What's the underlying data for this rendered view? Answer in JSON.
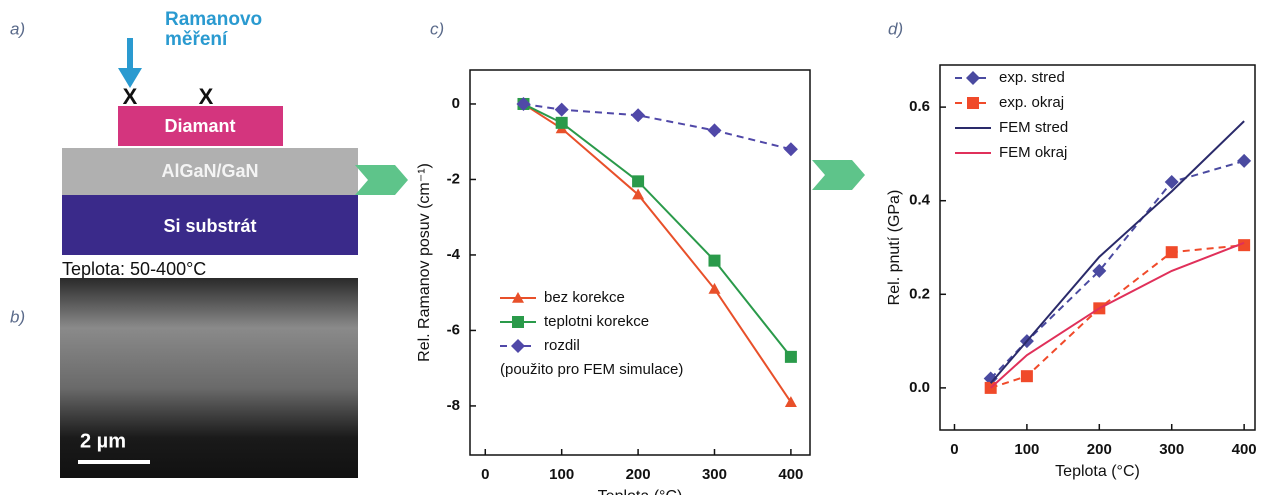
{
  "panels": [
    "a)",
    "b)",
    "c)",
    "d)"
  ],
  "diagram": {
    "raman_label": [
      "Ramanovo",
      "měření"
    ],
    "markers": [
      "X",
      "X"
    ],
    "layers": [
      "Diamant",
      "AlGaN/GaN",
      "Si substrát"
    ],
    "temperature": "Teplota: 50-400°C"
  },
  "image": {
    "scale_bar": "2 µm"
  },
  "chart_data": [
    {
      "type": "line",
      "x_label": "Teplota (°C)",
      "y_label": "Rel. Ramanov posuv (cm⁻¹)",
      "x": [
        50,
        100,
        200,
        300,
        400
      ],
      "xlim": [
        -20,
        425
      ],
      "xticks": [
        0,
        100,
        200,
        300,
        400
      ],
      "ylim": [
        -9.3,
        0.9
      ],
      "yticks": [
        0,
        -2,
        -4,
        -6,
        -8
      ],
      "legend": "lower left",
      "annotation": "(použito pro FEM simulace)",
      "series": [
        {
          "name": "bez korekce",
          "color": "#e8502a",
          "marker": "triangle",
          "dashed": false,
          "values": [
            0,
            -0.65,
            -2.4,
            -4.9,
            -7.9
          ]
        },
        {
          "name": "teplotni korekce",
          "color": "#2a9a4a",
          "marker": "square",
          "dashed": false,
          "values": [
            0,
            -0.5,
            -2.05,
            -4.15,
            -6.7
          ]
        },
        {
          "name": "rozdil",
          "color": "#5048a8",
          "marker": "diamond",
          "dashed": true,
          "values": [
            0,
            -0.15,
            -0.3,
            -0.7,
            -1.2
          ]
        }
      ]
    },
    {
      "type": "line",
      "x_label": "Teplota (°C)",
      "y_label": "Rel. pnutí (GPa)",
      "x": [
        50,
        100,
        200,
        300,
        400
      ],
      "xlim": [
        -20,
        415
      ],
      "xticks": [
        0,
        100,
        200,
        300,
        400
      ],
      "ylim": [
        -0.09,
        0.69
      ],
      "yticks": [
        {
          "value": 0,
          "label": "0.0"
        },
        0.2,
        0.4,
        0.6
      ],
      "legend": "upper left",
      "series": [
        {
          "name": "exp. stred",
          "color": "#4a4aa0",
          "marker": "diamond",
          "dashed": true,
          "values": [
            0.02,
            0.1,
            0.25,
            0.44,
            0.485
          ]
        },
        {
          "name": "exp. okraj",
          "color": "#f04a2a",
          "marker": "square",
          "dashed": true,
          "values": [
            0,
            0.025,
            0.17,
            0.29,
            0.305
          ]
        },
        {
          "name": "FEM stred",
          "color": "#2a2a6a",
          "marker": "none",
          "dashed": false,
          "values": [
            0.01,
            0.1,
            0.28,
            0.42,
            0.57
          ]
        },
        {
          "name": "FEM okraj",
          "color": "#e0305a",
          "marker": "none",
          "dashed": false,
          "values": [
            0,
            0.07,
            0.17,
            0.25,
            0.31
          ]
        }
      ]
    }
  ]
}
